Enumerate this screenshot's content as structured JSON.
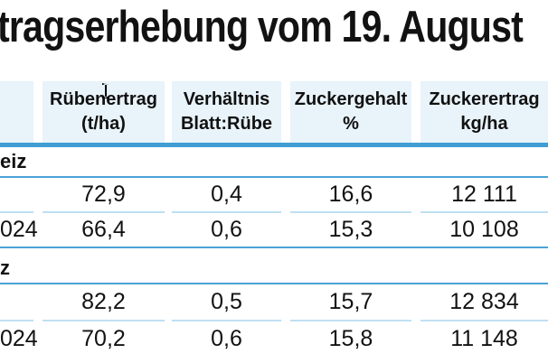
{
  "title": {
    "text": "tragserhebung vom 19. August"
  },
  "colors": {
    "header_bg": "#e8f3fa",
    "thick_rule": "#3f9ed3",
    "section_rule": "#4aa3d6",
    "row_rule": "#bfdff1",
    "text": "#121212"
  },
  "cursor": {
    "type": "text-ibeam"
  },
  "table": {
    "columns": [
      {
        "line1": "",
        "line2": ""
      },
      {
        "line1": "Rübenertrag",
        "line2": "(t/ha)"
      },
      {
        "line1": "Verhältnis",
        "line2": "Blatt:Rübe"
      },
      {
        "line1": "Zuckergehalt",
        "line2": "%"
      },
      {
        "line1": "Zuckerertrag",
        "line2": "kg/ha"
      }
    ],
    "sections": [
      {
        "header": "eiz",
        "rows": [
          {
            "label": "",
            "values": [
              "72,9",
              "0,4",
              "16,6",
              "12 111"
            ]
          },
          {
            "label": "024",
            "values": [
              "66,4",
              "0,6",
              "15,3",
              "10 108"
            ]
          }
        ]
      },
      {
        "header": "z",
        "rows": [
          {
            "label": "",
            "values": [
              "82,2",
              "0,5",
              "15,7",
              "12 834"
            ]
          },
          {
            "label": "024",
            "values": [
              "70,2",
              "0,6",
              "15,8",
              "11 148"
            ]
          }
        ]
      }
    ]
  }
}
